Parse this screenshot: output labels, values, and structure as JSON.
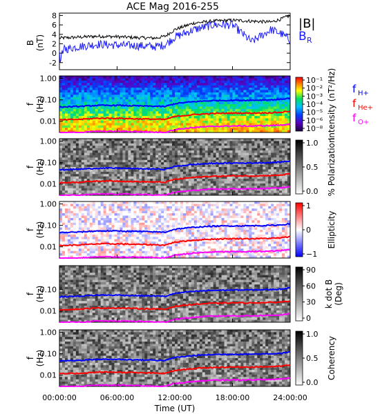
{
  "title": "ACE Mag 2016-255",
  "xlabel": "Time (UT)",
  "x_ticks": [
    "00:00:00",
    "06:00:00",
    "12:00:00",
    "18:00:00",
    "24:00:00"
  ],
  "colors": {
    "B_total": "#000000",
    "B_R": "#1a1aff",
    "f_H": "#0000ff",
    "f_He": "#ff0000",
    "f_O": "#ff00ff"
  },
  "chart_data": [
    {
      "type": "line",
      "panel": "B",
      "ylabel_top": "B",
      "ylabel_bottom": "(nT)",
      "ylim": [
        -3.5,
        8.5
      ],
      "yticks": [
        "-2",
        "0",
        "2",
        "4",
        "6",
        "8"
      ],
      "x_hours": [
        0,
        2,
        4,
        6,
        8,
        10,
        11,
        12,
        14,
        16,
        18,
        20,
        22,
        23,
        24
      ],
      "series": [
        {
          "name": "|B|",
          "values": [
            3.2,
            3.4,
            3.6,
            3.5,
            3.3,
            3.2,
            3.6,
            5.0,
            6.4,
            6.8,
            7.0,
            6.8,
            6.6,
            7.2,
            8.0
          ]
        },
        {
          "name": "B_R",
          "values": [
            0.6,
            1.4,
            1.9,
            1.7,
            1.6,
            1.4,
            1.8,
            3.4,
            5.0,
            6.0,
            6.0,
            2.4,
            5.0,
            4.2,
            2.8
          ]
        }
      ],
      "legend": [
        "|B|",
        "B",
        "R"
      ]
    },
    {
      "type": "heatmap",
      "panel": "Intensity",
      "ylabel_top": "f",
      "ylabel_bottom": "(Hz)",
      "yticks": [
        "1.00",
        "0.10",
        "0.01"
      ],
      "colorbar_label": "Intensity (nT²/Hz)",
      "colorbar_ticks": [
        "10⁻¹",
        "10⁻²",
        "10⁻³",
        "10⁻⁴",
        "10⁻⁵",
        "10⁻⁶",
        "10⁻⁸"
      ],
      "legend": {
        "h": [
          "f",
          "H+"
        ],
        "he": [
          "f",
          "He+"
        ],
        "o": [
          "f",
          "O+"
        ]
      }
    },
    {
      "type": "heatmap",
      "panel": "Polarization",
      "ylabel_top": "f",
      "ylabel_bottom": "(Hz)",
      "yticks": [
        "1.00",
        "0.10",
        "0.01"
      ],
      "colorbar_label": "% Polarization",
      "colorbar_ticks": [
        "1.0",
        "0.5",
        "0.0"
      ]
    },
    {
      "type": "heatmap",
      "panel": "Ellipticity",
      "ylabel_top": "f",
      "ylabel_bottom": "(Hz)",
      "yticks": [
        "1.00",
        "0.10",
        "0.01"
      ],
      "colorbar_label": "Ellipticity",
      "colorbar_ticks": [
        "1",
        "0",
        "−1"
      ]
    },
    {
      "type": "heatmap",
      "panel": "k dot B",
      "ylabel_top": "f",
      "ylabel_bottom": "(Hz)",
      "yticks": [
        "0.10",
        "0.01"
      ],
      "colorbar_label_top": "k dot B",
      "colorbar_label_bottom": "(Deg)",
      "colorbar_ticks": [
        "90",
        "60",
        "30",
        "0"
      ]
    },
    {
      "type": "heatmap",
      "panel": "Coherency",
      "ylabel_top": "f",
      "ylabel_bottom": "(Hz)",
      "yticks": [
        "1.00",
        "0.10",
        "0.01"
      ],
      "colorbar_label": "Coherency",
      "colorbar_ticks": [
        "1.0",
        "0.5",
        "0.0"
      ]
    }
  ],
  "gyrofrequency_lines": {
    "x_hours": [
      0,
      2,
      4,
      6,
      8,
      10,
      11,
      12,
      14,
      16,
      18,
      20,
      22,
      23,
      24
    ],
    "f_H": [
      0.046,
      0.049,
      0.055,
      0.055,
      0.052,
      0.05,
      0.048,
      0.066,
      0.082,
      0.092,
      0.095,
      0.096,
      0.1,
      0.105,
      0.12
    ],
    "f_He": [
      0.0115,
      0.0122,
      0.0138,
      0.0138,
      0.013,
      0.0125,
      0.012,
      0.0165,
      0.0205,
      0.023,
      0.024,
      0.024,
      0.025,
      0.026,
      0.03
    ],
    "f_O": [
      0.0029,
      0.003,
      0.0034,
      0.0034,
      0.0033,
      0.0031,
      0.003,
      0.0041,
      0.0051,
      0.0058,
      0.006,
      0.006,
      0.0063,
      0.0066,
      0.0075
    ]
  }
}
